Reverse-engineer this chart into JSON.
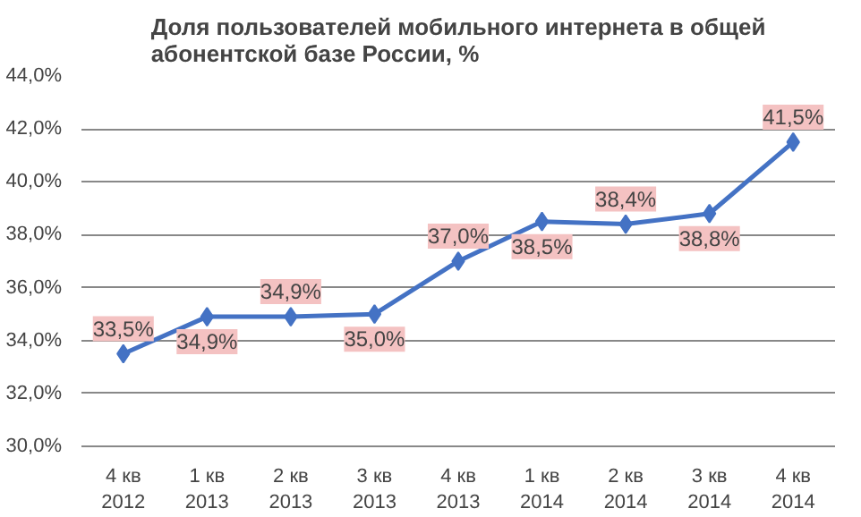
{
  "chart_data": {
    "type": "line",
    "title": "Доля пользователей мобильного интернета в общей\nабонентской базе России, %",
    "categories": [
      "4 кв\n2012",
      "1 кв\n2013",
      "2 кв\n2013",
      "3 кв\n2013",
      "4 кв\n2013",
      "1 кв\n2014",
      "2 кв\n2014",
      "3 кв\n2014",
      "4 кв\n2014"
    ],
    "series": [
      {
        "color": "#4472c4",
        "values": [
          33.5,
          34.9,
          34.9,
          35.0,
          37.0,
          38.5,
          38.4,
          38.8,
          41.5
        ],
        "value_labels": [
          "33,5%",
          "34,9%",
          "34,9%",
          "35,0%",
          "37,0%",
          "38,5%",
          "38,4%",
          "38,8%",
          "41,5%"
        ]
      }
    ],
    "ylim": [
      30,
      44
    ],
    "yticks": [
      {
        "value": 30,
        "label": "30,0%"
      },
      {
        "value": 32,
        "label": "32,0%"
      },
      {
        "value": 34,
        "label": "34,0%"
      },
      {
        "value": 36,
        "label": "36,0%"
      },
      {
        "value": 38,
        "label": "38,0%"
      },
      {
        "value": 40,
        "label": "40,0%"
      },
      {
        "value": 42,
        "label": "42,0%"
      },
      {
        "value": 44,
        "label": "44,0%"
      }
    ],
    "grid": "y",
    "marker": "diamond",
    "line_style": "solid"
  }
}
